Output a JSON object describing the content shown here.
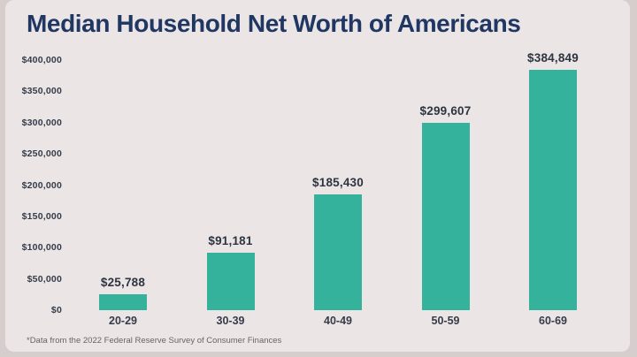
{
  "page": {
    "title": "Median Household Net Worth of Americans",
    "footnote": "*Data from the 2022 Federal Reserve Survey of Consumer Finances"
  },
  "colors": {
    "background": "#ebe6e5",
    "outer_background": "#d6cecd",
    "bar": "#35b29b",
    "title_text": "#203763",
    "axis_text": "#363b49",
    "value_text": "#2e3440",
    "footnote_text": "#6a6360"
  },
  "chart_data": {
    "type": "bar",
    "title": "Median Household Net Worth of Americans",
    "categories": [
      "20-29",
      "30-39",
      "40-49",
      "50-59",
      "60-69"
    ],
    "values": [
      25788,
      91181,
      185430,
      299607,
      384849
    ],
    "value_labels": [
      "$25,788",
      "$91,181",
      "$185,430",
      "$299,607",
      "$384,849"
    ],
    "xlabel": "",
    "ylabel": "",
    "ylim": [
      0,
      400000
    ],
    "ytick_interval": 50000,
    "ytick_labels": [
      "$0",
      "$50,000",
      "$100,000",
      "$150,000",
      "$200,000",
      "$250,000",
      "$300,000",
      "$350,000",
      "$400,000"
    ],
    "grid": false,
    "legend": false,
    "bar_color": "#35b29b",
    "footnote": "*Data from the 2022 Federal Reserve Survey of Consumer Finances"
  }
}
